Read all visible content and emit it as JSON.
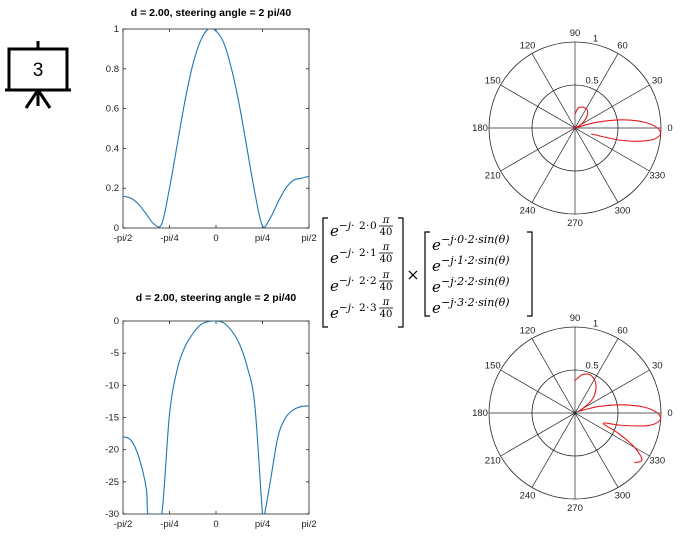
{
  "slide_icon": {
    "icon": "presentation-board-icon",
    "number": "3"
  },
  "chart_data": [
    {
      "type": "line",
      "title": "d = 2.00, steering angle  = 2 pi/40",
      "xlabel": "",
      "ylabel": "",
      "xlim": [
        -1.5708,
        1.5708
      ],
      "ylim": [
        0,
        1
      ],
      "xticks": [
        -1.5708,
        -0.7854,
        0,
        0.7854,
        1.5708
      ],
      "xticklabels": [
        "-pi/2",
        "-pi/4",
        "0",
        "pi/4",
        "pi/2"
      ],
      "yticks": [
        0,
        0.2,
        0.4,
        0.6,
        0.8,
        1
      ],
      "yticklabels": [
        "0",
        "0.2",
        "0.4",
        "0.6",
        "0.8",
        "1"
      ],
      "grid": false,
      "series": [
        {
          "color": "#1f77b4",
          "x": [
            -1.5708,
            -1.4399,
            -1.309,
            -1.1781,
            -1.0472,
            -0.9163,
            -0.7854,
            -0.6545,
            -0.5236,
            -0.3927,
            -0.2618,
            -0.1309,
            0,
            0.1309,
            0.2618,
            0.3927,
            0.5236,
            0.6545,
            0.7854,
            0.9163,
            1.0472,
            1.1781,
            1.309,
            1.4399,
            1.5708
          ],
          "y": [
            0.16,
            0.15,
            0.12,
            0.07,
            0.02,
            0.02,
            0.2,
            0.42,
            0.64,
            0.82,
            0.94,
            1.0,
            0.99,
            0.93,
            0.8,
            0.62,
            0.4,
            0.18,
            0.01,
            0.05,
            0.13,
            0.2,
            0.24,
            0.25,
            0.26
          ]
        }
      ]
    },
    {
      "type": "line",
      "title": "d = 2.00, steering angle  = 2 pi/40",
      "xlabel": "",
      "ylabel": "",
      "xlim": [
        -1.5708,
        1.5708
      ],
      "ylim": [
        -30,
        0
      ],
      "xticks": [
        -1.5708,
        -0.7854,
        0,
        0.7854,
        1.5708
      ],
      "xticklabels": [
        "-pi/2",
        "-pi/4",
        "0",
        "pi/4",
        "pi/2"
      ],
      "yticks": [
        0,
        -5,
        -10,
        -15,
        -20,
        -25,
        -30
      ],
      "yticklabels": [
        "0",
        "-5",
        "-10",
        "-15",
        "-20",
        "-25",
        "-30"
      ],
      "grid": false,
      "series": [
        {
          "color": "#1f77b4",
          "x": [
            -1.5708,
            -1.4399,
            -1.309,
            -1.1781,
            -1.15,
            -1.047,
            -0.9163,
            -0.7854,
            -0.6545,
            -0.5236,
            -0.3927,
            -0.2618,
            -0.1309,
            0,
            0.1309,
            0.2618,
            0.3927,
            0.5236,
            0.6545,
            0.7854,
            0.82,
            0.9163,
            1.0472,
            1.1781,
            1.309,
            1.4399,
            1.5708
          ],
          "y": [
            -18,
            -18.5,
            -21,
            -26,
            -30,
            -30,
            -30,
            -14.5,
            -7.5,
            -4,
            -2,
            -0.6,
            -0.1,
            0,
            -0.3,
            -1.5,
            -3.5,
            -7,
            -13,
            -30,
            -30,
            -25,
            -18,
            -15,
            -13.8,
            -13.3,
            -13.2
          ]
        }
      ]
    },
    {
      "type": "polar",
      "rlim": [
        0,
        1
      ],
      "rticks": [
        0.5,
        1
      ],
      "rticklabels": [
        "0.5",
        "1"
      ],
      "angle_ticks_deg": [
        0,
        30,
        60,
        90,
        120,
        150,
        180,
        210,
        240,
        270,
        300,
        330
      ],
      "angle_ticklabels": [
        "0",
        "30",
        "60",
        "90",
        "120",
        "150",
        "180",
        "210",
        "240",
        "270",
        "300",
        "330"
      ],
      "series": [
        {
          "color": "#e41a1c",
          "theta_deg": [
            -20,
            -15,
            -10,
            -5,
            0,
            5,
            10,
            15,
            20,
            25,
            30,
            35,
            40,
            45,
            50,
            55,
            60,
            65,
            70,
            75,
            80,
            85,
            90
          ],
          "r": [
            0.2,
            0.55,
            0.85,
            0.99,
            0.96,
            0.8,
            0.55,
            0.25,
            0.0,
            0.04,
            0.08,
            0.12,
            0.16,
            0.2,
            0.23,
            0.25,
            0.26,
            0.26,
            0.26,
            0.25,
            0.24,
            0.2,
            0.16
          ]
        }
      ]
    },
    {
      "type": "polar",
      "rlim": [
        0,
        1
      ],
      "rticks": [
        0.5,
        1
      ],
      "rticklabels": [
        "0.5",
        "1"
      ],
      "angle_ticks_deg": [
        0,
        30,
        60,
        90,
        120,
        150,
        180,
        210,
        240,
        270,
        300,
        330
      ],
      "angle_ticklabels": [
        "0",
        "30",
        "60",
        "90",
        "120",
        "150",
        "180",
        "210",
        "240",
        "270",
        "300",
        "330"
      ],
      "series": [
        {
          "color": "#e41a1c",
          "theta_deg": [
            -40,
            -35,
            -30,
            -25,
            -20,
            -15,
            -10,
            -5,
            0,
            5,
            10,
            15,
            20,
            25,
            30,
            35,
            40,
            45,
            50,
            55,
            60,
            65,
            70,
            75,
            80,
            85,
            90
          ],
          "r": [
            0.9,
            0.95,
            0.8,
            0.55,
            0.35,
            0.55,
            0.85,
            0.99,
            0.96,
            0.8,
            0.55,
            0.3,
            0.1,
            0.05,
            0.1,
            0.2,
            0.28,
            0.33,
            0.38,
            0.42,
            0.45,
            0.47,
            0.48,
            0.47,
            0.45,
            0.41,
            0.38
          ]
        }
      ]
    }
  ],
  "equation": {
    "left_vector": [
      {
        "base": "e",
        "prefix": "−j·",
        "red": "2",
        "dot": "·",
        "blue": "0",
        "num": "π",
        "den": "40"
      },
      {
        "base": "e",
        "prefix": "−j·",
        "red": "2",
        "dot": "·",
        "blue": "1",
        "num": "π",
        "den": "40"
      },
      {
        "base": "e",
        "prefix": "−j·",
        "red": "2",
        "dot": "·",
        "blue": "2",
        "num": "π",
        "den": "40"
      },
      {
        "base": "e",
        "prefix": "−j·",
        "red": "2",
        "dot": "·",
        "blue": "3",
        "num": "π",
        "den": "40"
      }
    ],
    "operator": "×",
    "right_vector": [
      {
        "base": "e",
        "exp": "−j·0·2·sin(θ)"
      },
      {
        "base": "e",
        "exp": "−j·1·2·sin(θ)"
      },
      {
        "base": "e",
        "exp": "−j·2·2·sin(θ)"
      },
      {
        "base": "e",
        "exp": "−j·3·2·sin(θ)"
      }
    ],
    "colors": {
      "red": "#d62728",
      "blue": "#1f77b4"
    }
  }
}
